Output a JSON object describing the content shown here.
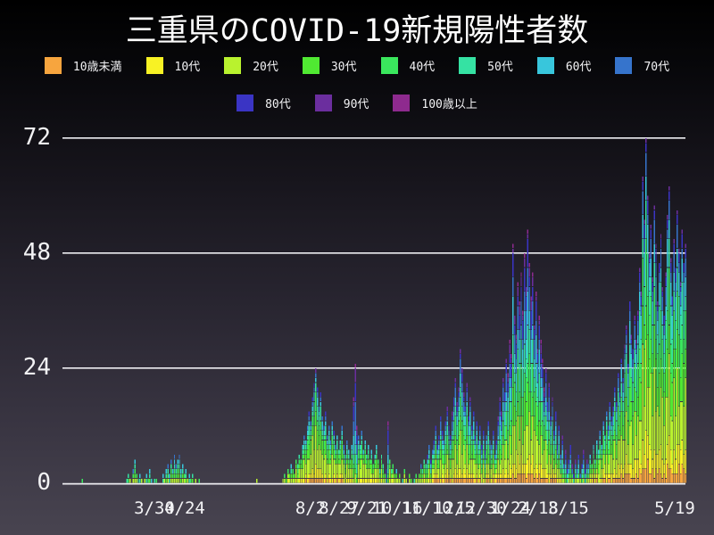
{
  "title": "三重県のCOVID-19新規陽性者数",
  "chart_data": {
    "type": "stacked_bar",
    "title": "三重県のCOVID-19新規陽性者数",
    "legend_position": "top",
    "grid": "horizontal",
    "ylim": [
      0,
      72
    ],
    "y_ticks": [
      0,
      24,
      48,
      72
    ],
    "x_tick_labels": [
      "3/30",
      "4/24",
      "8/2",
      "8/27",
      "9/21",
      "10/16",
      "11/10",
      "12/5",
      "12/30",
      "1/24",
      "2/18",
      "3/15",
      "5/19"
    ],
    "age_groups": [
      "10歳未満",
      "10代",
      "20代",
      "30代",
      "40代",
      "50代",
      "60代",
      "70代",
      "80代",
      "90代",
      "100歳以上"
    ],
    "colors": [
      "#F7A53E",
      "#F8F224",
      "#B9F22E",
      "#50E932",
      "#3AE75D",
      "#35E2A3",
      "#38C6DC",
      "#3674CC",
      "#3A34C4",
      "#6B2E9E",
      "#8E2A8E"
    ],
    "daily_totals": [
      0,
      0,
      0,
      0,
      1,
      0,
      0,
      0,
      0,
      0,
      0,
      0,
      0,
      0,
      0,
      0,
      0,
      0,
      0,
      0,
      0,
      0,
      0,
      0,
      0,
      0,
      0,
      0,
      0,
      0,
      0,
      1,
      2,
      1,
      0,
      3,
      5,
      2,
      1,
      2,
      1,
      0,
      1,
      2,
      1,
      3,
      1,
      0,
      1,
      1,
      0,
      0,
      0,
      2,
      1,
      3,
      4,
      2,
      5,
      3,
      6,
      4,
      5,
      6,
      3,
      4,
      2,
      3,
      1,
      2,
      1,
      2,
      0,
      1,
      0,
      1,
      0,
      0,
      0,
      0,
      0,
      0,
      0,
      0,
      0,
      0,
      0,
      0,
      0,
      0,
      0,
      0,
      0,
      0,
      0,
      0,
      0,
      0,
      0,
      0,
      0,
      0,
      0,
      0,
      0,
      0,
      0,
      0,
      0,
      0,
      1,
      0,
      0,
      0,
      0,
      0,
      0,
      0,
      0,
      0,
      0,
      0,
      0,
      0,
      0,
      0,
      1,
      2,
      1,
      3,
      2,
      4,
      3,
      2,
      5,
      4,
      6,
      5,
      8,
      10,
      9,
      12,
      15,
      13,
      18,
      21,
      24,
      20,
      16,
      19,
      14,
      12,
      15,
      10,
      12,
      9,
      13,
      11,
      8,
      10,
      7,
      9,
      12,
      8,
      6,
      9,
      7,
      5,
      8,
      18,
      25,
      12,
      10,
      8,
      11,
      7,
      9,
      6,
      8,
      5,
      7,
      4,
      6,
      8,
      5,
      3,
      6,
      4,
      2,
      3,
      13,
      5,
      3,
      4,
      2,
      3,
      1,
      2,
      0,
      1,
      3,
      1,
      0,
      2,
      1,
      0,
      1,
      2,
      1,
      2,
      4,
      3,
      5,
      4,
      6,
      8,
      5,
      7,
      9,
      12,
      8,
      10,
      14,
      11,
      9,
      13,
      16,
      12,
      10,
      15,
      18,
      22,
      17,
      20,
      28,
      24,
      19,
      16,
      21,
      14,
      18,
      12,
      15,
      10,
      13,
      9,
      12,
      8,
      11,
      7,
      10,
      13,
      9,
      8,
      11,
      6,
      9,
      14,
      18,
      15,
      22,
      19,
      26,
      23,
      30,
      27,
      50,
      35,
      31,
      42,
      38,
      44,
      36,
      48,
      41,
      53,
      46,
      39,
      44,
      33,
      40,
      28,
      35,
      30,
      26,
      20,
      24,
      17,
      21,
      14,
      18,
      11,
      15,
      8,
      12,
      6,
      10,
      4,
      7,
      3,
      5,
      8,
      4,
      2,
      5,
      3,
      6,
      2,
      4,
      7,
      3,
      5,
      4,
      6,
      4,
      8,
      5,
      9,
      7,
      11,
      8,
      13,
      10,
      15,
      12,
      17,
      14,
      16,
      20,
      17,
      23,
      19,
      26,
      22,
      29,
      33,
      25,
      38,
      31,
      28,
      35,
      30,
      36,
      45,
      40,
      64,
      55,
      72,
      60,
      48,
      54,
      43,
      58,
      50,
      38,
      46,
      52,
      41,
      35,
      44,
      56,
      62,
      47,
      39,
      51,
      45,
      57,
      49,
      42,
      53,
      46,
      50
    ],
    "era_age_shares": [
      {
        "start_index": 0,
        "shares": [
          0.02,
          0.05,
          0.14,
          0.13,
          0.15,
          0.18,
          0.14,
          0.1,
          0.05,
          0.03,
          0.01
        ]
      },
      {
        "start_index": 110,
        "shares": [
          0.04,
          0.09,
          0.3,
          0.17,
          0.12,
          0.1,
          0.08,
          0.05,
          0.03,
          0.015,
          0.005
        ]
      },
      {
        "start_index": 169,
        "shares": [
          0.01,
          0.02,
          0.05,
          0.07,
          0.09,
          0.12,
          0.15,
          0.2,
          0.16,
          0.09,
          0.04
        ]
      },
      {
        "start_index": 172,
        "shares": [
          0.04,
          0.09,
          0.3,
          0.17,
          0.12,
          0.1,
          0.08,
          0.05,
          0.03,
          0.015,
          0.005
        ]
      },
      {
        "start_index": 189,
        "shares": [
          0.01,
          0.02,
          0.05,
          0.07,
          0.09,
          0.12,
          0.15,
          0.2,
          0.16,
          0.09,
          0.04
        ]
      },
      {
        "start_index": 191,
        "shares": [
          0.04,
          0.09,
          0.3,
          0.17,
          0.12,
          0.1,
          0.08,
          0.05,
          0.03,
          0.015,
          0.005
        ]
      },
      {
        "start_index": 196,
        "shares": [
          0.05,
          0.08,
          0.2,
          0.14,
          0.13,
          0.12,
          0.1,
          0.08,
          0.06,
          0.03,
          0.01
        ]
      },
      {
        "start_index": 257,
        "shares": [
          0.04,
          0.07,
          0.17,
          0.13,
          0.12,
          0.12,
          0.11,
          0.1,
          0.08,
          0.04,
          0.02
        ]
      },
      {
        "start_index": 296,
        "shares": [
          0.02,
          0.04,
          0.1,
          0.09,
          0.1,
          0.12,
          0.13,
          0.15,
          0.13,
          0.08,
          0.04
        ]
      },
      {
        "start_index": 313,
        "shares": [
          0.05,
          0.09,
          0.23,
          0.16,
          0.14,
          0.12,
          0.09,
          0.06,
          0.04,
          0.015,
          0.005
        ]
      }
    ]
  }
}
